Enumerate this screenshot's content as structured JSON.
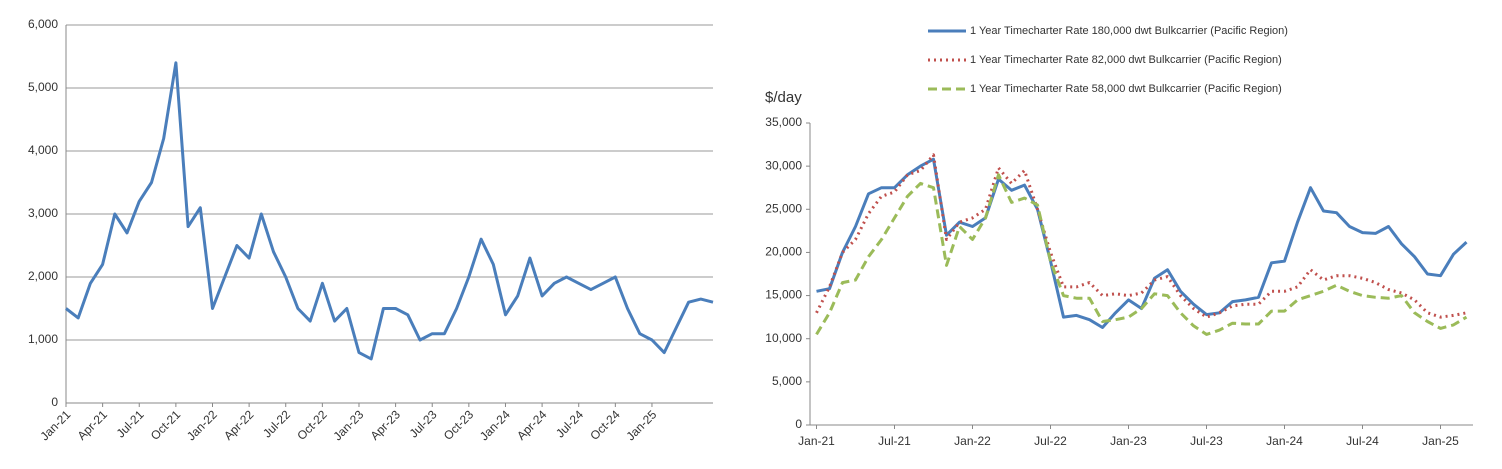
{
  "chart_data": [
    {
      "type": "line",
      "categories": [
        "Jan-21",
        null,
        null,
        "Apr-21",
        null,
        null,
        "Jul-21",
        null,
        null,
        "Oct-21",
        null,
        null,
        "Jan-22",
        null,
        null,
        "Apr-22",
        null,
        null,
        "Jul-22",
        null,
        null,
        "Oct-22",
        null,
        null,
        "Jan-23",
        null,
        null,
        "Apr-23",
        null,
        null,
        "Jul-23",
        null,
        null,
        "Oct-23",
        null,
        null,
        "Jan-24",
        null,
        null,
        "Apr-24",
        null,
        null,
        "Jul-24",
        null,
        null,
        "Oct-24",
        null,
        null,
        "Jan-25",
        null,
        null,
        null,
        null,
        null
      ],
      "values": [
        1500,
        1350,
        1900,
        2200,
        3000,
        2700,
        3200,
        3500,
        4200,
        5400,
        2800,
        3100,
        1500,
        2000,
        2500,
        2300,
        3000,
        2400,
        2000,
        1500,
        1300,
        1900,
        1300,
        1500,
        800,
        700,
        1500,
        1500,
        1400,
        1000,
        1100,
        1100,
        1500,
        2000,
        2600,
        2200,
        1400,
        1700,
        2300,
        1700,
        1900,
        2000,
        1900,
        1800,
        1900,
        2000,
        1500,
        1100,
        1000,
        800,
        1200,
        1600,
        1650,
        1600
      ],
      "color": "#4a7ebb",
      "ylim": [
        0,
        6000
      ],
      "yticks": [
        0,
        {
          "value": 1000,
          "label": "1,000"
        },
        {
          "value": 2000,
          "label": "2,000"
        },
        {
          "value": 3000,
          "label": "3,000"
        },
        {
          "value": 4000,
          "label": "4,000"
        },
        {
          "value": 5000,
          "label": "5,000"
        },
        {
          "value": 6000,
          "label": "6,000"
        }
      ],
      "grid": true
    },
    {
      "type": "line",
      "y_label": "$/day",
      "categories": [
        "Jan-21",
        null,
        null,
        null,
        null,
        null,
        "Jul-21",
        null,
        null,
        null,
        null,
        null,
        "Jan-22",
        null,
        null,
        null,
        null,
        null,
        "Jul-22",
        null,
        null,
        null,
        null,
        null,
        "Jan-23",
        null,
        null,
        null,
        null,
        null,
        "Jul-23",
        null,
        null,
        null,
        null,
        null,
        "Jan-24",
        null,
        null,
        null,
        null,
        null,
        "Jul-24",
        null,
        null,
        null,
        null,
        null,
        "Jan-25",
        null,
        null
      ],
      "series": [
        {
          "name": "1 Year Timecharter Rate 180,000 dwt Bulkcarrier (Pacific Region)",
          "color": "#4a7ebb",
          "style": "solid",
          "values": [
            15500,
            15800,
            20000,
            23000,
            26800,
            27500,
            27500,
            29000,
            30000,
            30800,
            22000,
            23500,
            23000,
            24000,
            28500,
            27200,
            27800,
            25000,
            19000,
            12500,
            12700,
            12200,
            11300,
            13000,
            14500,
            13500,
            17000,
            18000,
            15500,
            14000,
            12800,
            13000,
            14300,
            14500,
            14800,
            18800,
            19000,
            23500,
            27500,
            24800,
            24600,
            23000,
            22300,
            22200,
            23000,
            21000,
            19500,
            17500,
            17300,
            19800,
            21200
          ]
        },
        {
          "name": "1 Year Timecharter Rate 82,000 dwt Bulkcarrier (Pacific Region)",
          "color": "#c0504d",
          "style": "dotted",
          "values": [
            13000,
            16000,
            20000,
            21500,
            24500,
            26500,
            27000,
            29000,
            29500,
            31300,
            21500,
            23500,
            24000,
            25000,
            29800,
            28000,
            29500,
            25000,
            20000,
            16000,
            16000,
            16500,
            15000,
            15200,
            15000,
            15300,
            16800,
            17200,
            15000,
            13500,
            12500,
            13000,
            13800,
            14000,
            14000,
            15500,
            15500,
            16000,
            18000,
            16800,
            17300,
            17300,
            17000,
            16500,
            15700,
            15300,
            14500,
            13000,
            12500,
            12700,
            13000
          ]
        },
        {
          "name": "1 Year Timecharter Rate 58,000 dwt Bulkcarrier (Pacific Region)",
          "color": "#9bbb59",
          "style": "dashed",
          "values": [
            10500,
            13000,
            16500,
            16800,
            19500,
            21500,
            24000,
            26500,
            28000,
            27500,
            18500,
            23000,
            21500,
            24000,
            29000,
            25800,
            26300,
            25500,
            19000,
            15000,
            14700,
            14700,
            12000,
            12200,
            12500,
            13500,
            15200,
            15000,
            13000,
            11500,
            10500,
            11000,
            11800,
            11700,
            11700,
            13200,
            13200,
            14500,
            15000,
            15500,
            16200,
            15500,
            15000,
            14800,
            14700,
            15000,
            13000,
            12000,
            11200,
            11600,
            12500
          ]
        }
      ],
      "ylim": [
        0,
        35000
      ],
      "yticks": [
        0,
        {
          "value": 5000,
          "label": "5,000"
        },
        {
          "value": 10000,
          "label": "10,000"
        },
        {
          "value": 15000,
          "label": "15,000"
        },
        {
          "value": 20000,
          "label": "20,000"
        },
        {
          "value": 25000,
          "label": "25,000"
        },
        {
          "value": 30000,
          "label": "30,000"
        },
        {
          "value": 35000,
          "label": "35,000"
        }
      ],
      "grid": false,
      "legend": "top"
    }
  ]
}
